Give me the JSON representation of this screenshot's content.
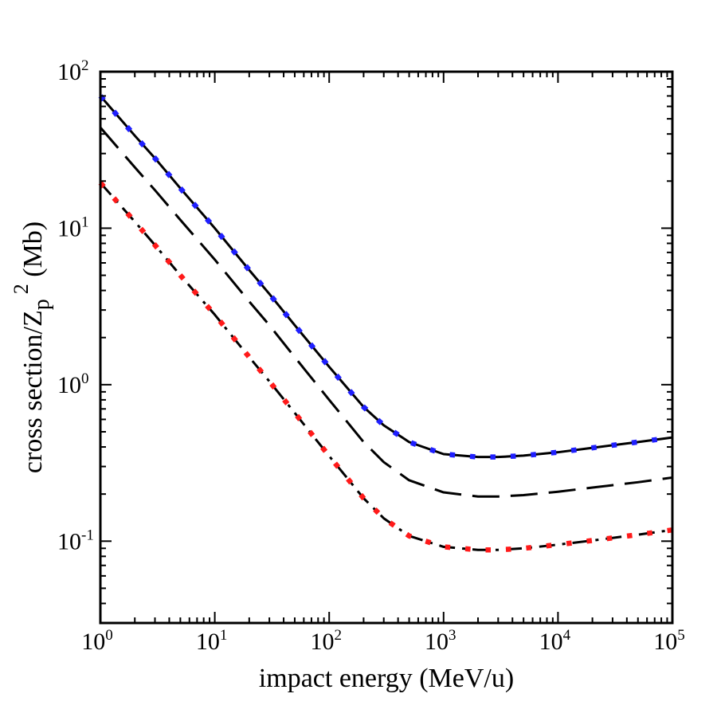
{
  "chart_data": {
    "type": "line",
    "title": "",
    "xlabel": "impact energy (MeV/u)",
    "ylabel": {
      "main": "cross section/Z",
      "sub": "p",
      "sup": "2",
      "unit": " (Mb)"
    },
    "xscale": "log",
    "yscale": "log",
    "xlim": [
      1,
      100000
    ],
    "ylim": [
      0.03,
      100
    ],
    "x_ticks": [
      {
        "base": "10",
        "exp": "0",
        "value": 1
      },
      {
        "base": "10",
        "exp": "1",
        "value": 10
      },
      {
        "base": "10",
        "exp": "2",
        "value": 100
      },
      {
        "base": "10",
        "exp": "3",
        "value": 1000
      },
      {
        "base": "10",
        "exp": "4",
        "value": 10000
      },
      {
        "base": "10",
        "exp": "5",
        "value": 100000
      }
    ],
    "y_ticks": [
      {
        "base": "10",
        "exp": "-1",
        "value": 0.1
      },
      {
        "base": "10",
        "exp": "0",
        "value": 1
      },
      {
        "base": "10",
        "exp": "1",
        "value": 10
      },
      {
        "base": "10",
        "exp": "2",
        "value": 100
      }
    ],
    "grid": false,
    "series": [
      {
        "name": "total (solid)",
        "style": "solid",
        "color": "#000000",
        "x": [
          1,
          2,
          3,
          5,
          10,
          20,
          30,
          50,
          100,
          200,
          300,
          500,
          1000,
          2000,
          3000,
          5000,
          10000,
          20000,
          50000,
          100000
        ],
        "y": [
          70,
          39,
          28,
          18,
          10,
          5.4,
          3.8,
          2.4,
          1.3,
          0.72,
          0.55,
          0.43,
          0.36,
          0.345,
          0.345,
          0.352,
          0.37,
          0.395,
          0.43,
          0.46
        ]
      },
      {
        "name": "blue dotted",
        "style": "dotted",
        "color": "#1f1fff",
        "x": [
          1,
          2,
          3,
          5,
          10,
          20,
          30,
          50,
          100,
          200,
          300,
          500,
          1000,
          2000,
          3000,
          5000,
          10000,
          20000,
          50000,
          100000
        ],
        "y": [
          70,
          39,
          28,
          18,
          10,
          5.4,
          3.8,
          2.4,
          1.3,
          0.72,
          0.55,
          0.43,
          0.36,
          0.345,
          0.345,
          0.352,
          0.37,
          0.395,
          0.43,
          0.46
        ]
      },
      {
        "name": "long dashed",
        "style": "dashed",
        "color": "#000000",
        "x": [
          1,
          2,
          3,
          5,
          10,
          20,
          30,
          50,
          100,
          200,
          300,
          500,
          1000,
          2000,
          3000,
          5000,
          10000,
          20000,
          50000,
          100000
        ],
        "y": [
          44,
          24.5,
          17.5,
          11.3,
          6.3,
          3.4,
          2.4,
          1.5,
          0.8,
          0.43,
          0.32,
          0.245,
          0.205,
          0.193,
          0.193,
          0.197,
          0.207,
          0.22,
          0.238,
          0.255
        ]
      },
      {
        "name": "dash-dot",
        "style": "dashdot",
        "color": "#000000",
        "x": [
          1,
          2,
          3,
          5,
          10,
          20,
          30,
          50,
          100,
          200,
          300,
          500,
          1000,
          2000,
          3000,
          5000,
          10000,
          20000,
          50000,
          100000
        ],
        "y": [
          19.5,
          11,
          7.8,
          5,
          2.8,
          1.5,
          1.05,
          0.66,
          0.35,
          0.188,
          0.14,
          0.108,
          0.092,
          0.088,
          0.088,
          0.09,
          0.095,
          0.101,
          0.11,
          0.118
        ]
      },
      {
        "name": "red dotted",
        "style": "dotted",
        "color": "#ff1a1a",
        "x": [
          1,
          2,
          3,
          5,
          10,
          20,
          30,
          50,
          100,
          200,
          300,
          500,
          1000,
          2000,
          3000,
          5000,
          10000,
          20000,
          50000,
          100000
        ],
        "y": [
          19.5,
          11,
          7.8,
          5,
          2.8,
          1.5,
          1.05,
          0.66,
          0.35,
          0.188,
          0.14,
          0.108,
          0.092,
          0.088,
          0.088,
          0.09,
          0.095,
          0.101,
          0.11,
          0.118
        ]
      }
    ]
  }
}
